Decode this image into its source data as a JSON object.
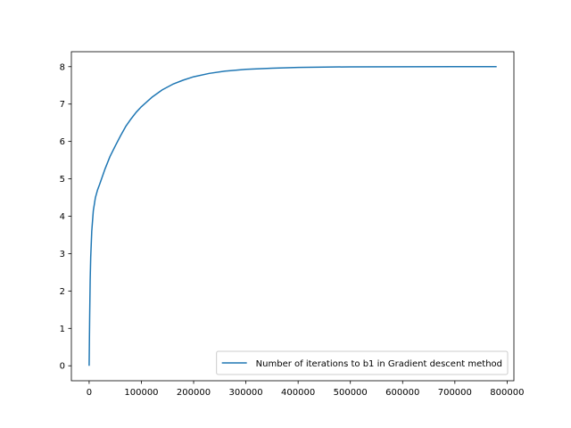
{
  "chart_data": {
    "type": "line",
    "title": "",
    "xlabel": "",
    "ylabel": "",
    "xlim": [
      -34000,
      813000
    ],
    "ylim": [
      -0.4,
      8.4
    ],
    "grid": false,
    "legend_position": "lower-right",
    "x_ticks": [
      {
        "value": 0,
        "label": "0"
      },
      {
        "value": 100000,
        "label": "100000"
      },
      {
        "value": 200000,
        "label": "200000"
      },
      {
        "value": 300000,
        "label": "300000"
      },
      {
        "value": 400000,
        "label": "400000"
      },
      {
        "value": 500000,
        "label": "500000"
      },
      {
        "value": 600000,
        "label": "600000"
      },
      {
        "value": 700000,
        "label": "700000"
      },
      {
        "value": 800000,
        "label": "800000"
      }
    ],
    "y_ticks": [
      {
        "value": 0,
        "label": "0"
      },
      {
        "value": 1,
        "label": "1"
      },
      {
        "value": 2,
        "label": "2"
      },
      {
        "value": 3,
        "label": "3"
      },
      {
        "value": 4,
        "label": "4"
      },
      {
        "value": 5,
        "label": "5"
      },
      {
        "value": 6,
        "label": "6"
      },
      {
        "value": 7,
        "label": "7"
      },
      {
        "value": 8,
        "label": "8"
      }
    ],
    "series": [
      {
        "name": "Number of iterations to b1 in Gradient descent method",
        "color": "#1f77b4",
        "x": [
          0,
          1000,
          2000,
          3000,
          5000,
          8000,
          12000,
          16000,
          20000,
          30000,
          40000,
          50000,
          60000,
          70000,
          80000,
          90000,
          100000,
          120000,
          140000,
          160000,
          180000,
          200000,
          230000,
          260000,
          300000,
          350000,
          400000,
          450000,
          500000,
          600000,
          700000,
          780000
        ],
        "y": [
          0,
          1.3,
          2.3,
          2.9,
          3.6,
          4.15,
          4.5,
          4.7,
          4.85,
          5.25,
          5.6,
          5.88,
          6.15,
          6.4,
          6.6,
          6.78,
          6.93,
          7.18,
          7.38,
          7.53,
          7.64,
          7.73,
          7.82,
          7.88,
          7.93,
          7.96,
          7.98,
          7.99,
          7.995,
          7.998,
          8.0,
          8.0
        ]
      }
    ]
  }
}
